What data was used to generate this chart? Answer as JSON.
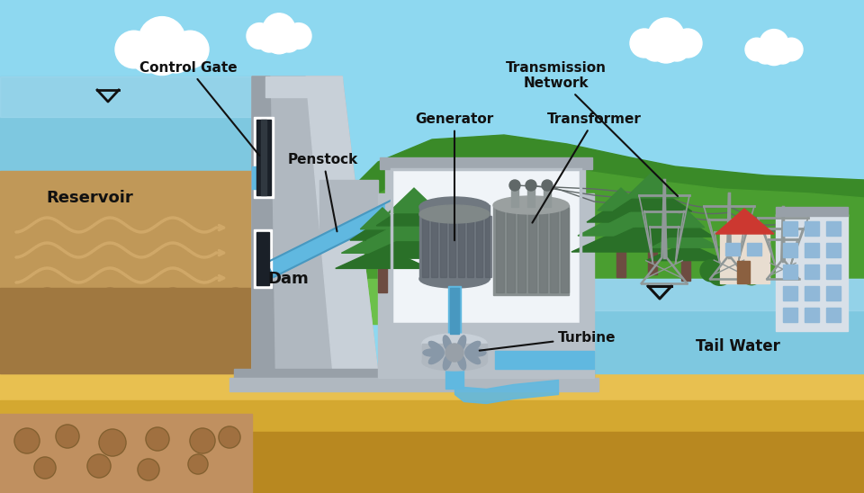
{
  "fig_width": 9.6,
  "fig_height": 5.48,
  "dpi": 100,
  "colors": {
    "sky": "#8ED8F0",
    "grass_bright": "#6CC04A",
    "grass_dark": "#4A9E30",
    "hill_dark": "#3A8A28",
    "sand_top": "#E8C050",
    "sand_mid": "#D4A830",
    "sand_dark": "#B88820",
    "stone_bg": "#C09060",
    "stone": "#A07040",
    "stone_dark": "#806030",
    "reservoir_water": "#7EC8E0",
    "reservoir_water_light": "#A8DCF0",
    "reservoir_sediment": "#C09858",
    "reservoir_sediment_dark": "#A07840",
    "sediment_wave": "#D0A868",
    "dam_light": "#C8D0D8",
    "dam_mid": "#B0B8C0",
    "dam_dark": "#98A0A8",
    "dam_shadow": "#8890A0",
    "penstock_water": "#60B8E0",
    "penstock_water_dark": "#4898C0",
    "powerhouse_wall": "#B8C0C8",
    "powerhouse_roof": "#A0A8B0",
    "powerhouse_inner": "#F0F4F8",
    "generator_body": "#707880",
    "generator_rib": "#585F68",
    "transformer_body": "#888F90",
    "transformer_rib": "#707878",
    "turbine_body": "#8898A8",
    "tower_gray": "#909898",
    "wire_color": "#606868",
    "tree_dark": "#2A7028",
    "tree_mid": "#3A8838",
    "tree_light": "#4AA048",
    "trunk": "#6D4C41",
    "bush": "#2E7828",
    "building_wall": "#D8E0E8",
    "building_window": "#90B8D8",
    "house_wall": "#E8DDD0",
    "house_roof": "#CC3830",
    "house_door": "#8B6040",
    "tail_water": "#7EC8E0",
    "tail_water_light": "#A8DCF0",
    "cloud": "#FFFFFF",
    "label_black": "#111111"
  },
  "labels": {
    "control_gate": "Control Gate",
    "reservoir": "Reservoir",
    "penstock": "Penstock",
    "dam": "Dam",
    "generator": "Generator",
    "transformer": "Transformer",
    "transmission": "Transmission\nNetwork",
    "turbine": "Turbine",
    "tail_water": "Tail Water"
  }
}
